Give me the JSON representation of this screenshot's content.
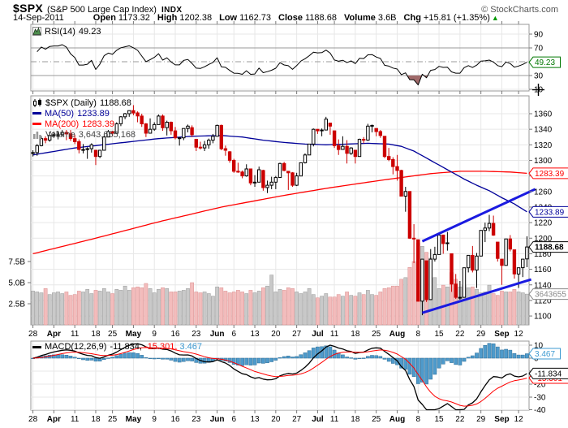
{
  "header": {
    "symbol": "$SPX",
    "symbol_desc": "(S&P 500 Large Cap Index)",
    "exchange": "INDX",
    "credit": "© StockCharts.com",
    "date": "14-Sep-2011",
    "fields": [
      {
        "label": "Open",
        "value": "1173.32"
      },
      {
        "label": "High",
        "value": "1202.38"
      },
      {
        "label": "Low",
        "value": "1162.73"
      },
      {
        "label": "Close",
        "value": "1188.68"
      },
      {
        "label": "Volume",
        "value": "3.6B"
      },
      {
        "label": "Chg",
        "value": "+15.81 (+1.35%)"
      }
    ],
    "change_direction": "up",
    "up_color": "#009900"
  },
  "rsi_panel": {
    "legend_label": "RSI(14)",
    "legend_value": "49.23",
    "axis_ticks": [
      90,
      70,
      30,
      10
    ],
    "levels": {
      "overbought": 70,
      "mid": 50,
      "oversold": 30
    },
    "current_value": 49.23,
    "current_box_color": "#007700"
  },
  "main_panel": {
    "legend": [
      {
        "icon": "candles",
        "label": "$SPX (Daily)",
        "value": "1188.68",
        "color": "#000000"
      },
      {
        "icon": "line",
        "label": "MA(50)",
        "value": "1233.89",
        "color": "#000099"
      },
      {
        "icon": "line",
        "label": "MA(200)",
        "value": "1283.39",
        "color": "#ff0000"
      },
      {
        "icon": "bars",
        "label": "Volume",
        "value": "3,643,655,168",
        "color": "#444444"
      }
    ],
    "price_axis_ticks": [
      1360,
      1340,
      1320,
      1300,
      1280,
      1260,
      1240,
      1220,
      1200,
      1180,
      1160,
      1140,
      1120,
      1100
    ],
    "volume_axis_ticks": [
      "7.5B",
      "5.0B",
      "2.5B"
    ],
    "volume_axis_values": [
      7.5,
      5.0,
      2.5
    ],
    "price_labels": {
      "last": {
        "text": "1188.68",
        "color": "#000000",
        "bold": true
      },
      "ma50": {
        "text": "1233.89",
        "color": "#000099"
      },
      "ma200": {
        "text": "1283.39",
        "color": "#ff0000"
      },
      "volume": {
        "text": "3643655",
        "color": "#888888"
      }
    }
  },
  "macd_panel": {
    "legend_label": "MACD(12,26,9)",
    "legend_values": [
      {
        "text": "-11.834,",
        "color": "#000000"
      },
      {
        "text": "-15.301,",
        "color": "#ff0000"
      },
      {
        "text": "3.467",
        "color": "#3d9ad1"
      }
    ],
    "axis_ticks": [
      10,
      0,
      -10,
      -20,
      -30,
      -40
    ],
    "boxes": [
      {
        "text": "3.467",
        "value": 3.467,
        "color": "#3d9ad1"
      },
      {
        "text": "-15.301",
        "value": -15.301,
        "color": "#ff0000"
      },
      {
        "text": "-11.834",
        "value": -11.834,
        "color": "#000000"
      }
    ]
  },
  "x_axis": {
    "labels": [
      "28",
      "Apr",
      "11",
      "18",
      "25",
      "May",
      "9",
      "16",
      "23",
      "Jun",
      "6",
      "13",
      "20",
      "27",
      "Jul",
      "11",
      "18",
      "25",
      "Aug",
      "8",
      "15",
      "22",
      "29",
      "Sep",
      "12"
    ],
    "tick_days": [
      0,
      5,
      10,
      15,
      19,
      24,
      29,
      34,
      39,
      44,
      48,
      53,
      58,
      63,
      68,
      72,
      77,
      82,
      87,
      92,
      97,
      102,
      107,
      112,
      116
    ]
  },
  "chart_data": {
    "type": "candlestick",
    "title": "$SPX S&P 500 Large Cap Index, Daily, 28-Mar-2011 to 14-Sep-2011",
    "date_range": [
      "2011-03-28",
      "2011-09-14"
    ],
    "price_axis_range": [
      1088,
      1384
    ],
    "volume_axis_range_b": [
      0,
      10
    ],
    "rsi_axis_range": [
      0,
      100
    ],
    "macd_axis_range": [
      -40,
      13
    ],
    "grid": true,
    "indicators": {
      "rsi_period": 14,
      "ma_periods": [
        50,
        200
      ],
      "macd_params": [
        12,
        26,
        9
      ]
    },
    "last_values": {
      "close": 1188.68,
      "ma50": 1233.89,
      "ma200": 1283.39,
      "volume": 3643655168,
      "rsi": 49.23,
      "macd": -11.834,
      "macd_signal": -15.301,
      "macd_hist": 3.467
    },
    "ohlc": [
      [
        1309,
        1313,
        1305,
        1310
      ],
      [
        1310,
        1321,
        1306,
        1319
      ],
      [
        1319,
        1331,
        1318,
        1328
      ],
      [
        1328,
        1331,
        1322,
        1326
      ],
      [
        1326,
        1337,
        1324,
        1332
      ],
      [
        1332,
        1337,
        1329,
        1333
      ],
      [
        1333,
        1338,
        1327,
        1333
      ],
      [
        1333,
        1339,
        1331,
        1336
      ],
      [
        1336,
        1339,
        1326,
        1334
      ],
      [
        1334,
        1339,
        1325,
        1328
      ],
      [
        1328,
        1333,
        1321,
        1324
      ],
      [
        1324,
        1327,
        1309,
        1314
      ],
      [
        1314,
        1321,
        1309,
        1314
      ],
      [
        1314,
        1317,
        1302,
        1315
      ],
      [
        1315,
        1322,
        1310,
        1320
      ],
      [
        1313,
        1313,
        1294,
        1305
      ],
      [
        1305,
        1313,
        1303,
        1313
      ],
      [
        1313,
        1332,
        1313,
        1330
      ],
      [
        1330,
        1339,
        1330,
        1337
      ],
      [
        1337,
        1338,
        1331,
        1335
      ],
      [
        1335,
        1349,
        1334,
        1347
      ],
      [
        1347,
        1357,
        1344,
        1356
      ],
      [
        1356,
        1361,
        1353,
        1360
      ],
      [
        1360,
        1364,
        1356,
        1364
      ],
      [
        1364,
        1371,
        1358,
        1361
      ],
      [
        1361,
        1363,
        1349,
        1357
      ],
      [
        1357,
        1360,
        1343,
        1347
      ],
      [
        1347,
        1348,
        1330,
        1335
      ],
      [
        1335,
        1354,
        1335,
        1340
      ],
      [
        1340,
        1349,
        1338,
        1346
      ],
      [
        1346,
        1359,
        1346,
        1357
      ],
      [
        1357,
        1359,
        1338,
        1342
      ],
      [
        1342,
        1351,
        1332,
        1349
      ],
      [
        1349,
        1350,
        1333,
        1338
      ],
      [
        1338,
        1343,
        1327,
        1329
      ],
      [
        1329,
        1330,
        1319,
        1329
      ],
      [
        1329,
        1341,
        1326,
        1341
      ],
      [
        1341,
        1346,
        1336,
        1344
      ],
      [
        1342,
        1345,
        1330,
        1333
      ],
      [
        1327,
        1327,
        1312,
        1317
      ],
      [
        1317,
        1324,
        1314,
        1316
      ],
      [
        1316,
        1325,
        1312,
        1320
      ],
      [
        1320,
        1328,
        1315,
        1326
      ],
      [
        1326,
        1334,
        1322,
        1331
      ],
      [
        1331,
        1346,
        1331,
        1345
      ],
      [
        1345,
        1346,
        1313,
        1315
      ],
      [
        1315,
        1319,
        1306,
        1313
      ],
      [
        1311,
        1312,
        1297,
        1300
      ],
      [
        1300,
        1302,
        1284,
        1286
      ],
      [
        1286,
        1297,
        1284,
        1285
      ],
      [
        1285,
        1287,
        1277,
        1280
      ],
      [
        1280,
        1295,
        1279,
        1289
      ],
      [
        1289,
        1289,
        1268,
        1271
      ],
      [
        1271,
        1281,
        1266,
        1272
      ],
      [
        1272,
        1292,
        1272,
        1288
      ],
      [
        1287,
        1288,
        1261,
        1265
      ],
      [
        1265,
        1274,
        1258,
        1268
      ],
      [
        1268,
        1279,
        1263,
        1272
      ],
      [
        1272,
        1280,
        1263,
        1278
      ],
      [
        1278,
        1297,
        1278,
        1296
      ],
      [
        1296,
        1298,
        1286,
        1287
      ],
      [
        1286,
        1286,
        1262,
        1284
      ],
      [
        1284,
        1285,
        1266,
        1268
      ],
      [
        1268,
        1284,
        1267,
        1280
      ],
      [
        1280,
        1297,
        1280,
        1297
      ],
      [
        1297,
        1309,
        1296,
        1307
      ],
      [
        1307,
        1321,
        1307,
        1321
      ],
      [
        1321,
        1341,
        1318,
        1340
      ],
      [
        1340,
        1340,
        1334,
        1338
      ],
      [
        1338,
        1341,
        1331,
        1339
      ],
      [
        1339,
        1356,
        1339,
        1353
      ],
      [
        1348,
        1348,
        1333,
        1344
      ],
      [
        1338,
        1338,
        1316,
        1319
      ],
      [
        1319,
        1327,
        1307,
        1314
      ],
      [
        1314,
        1331,
        1314,
        1318
      ],
      [
        1318,
        1326,
        1296,
        1309
      ],
      [
        1309,
        1317,
        1307,
        1316
      ],
      [
        1313,
        1313,
        1296,
        1305
      ],
      [
        1305,
        1328,
        1305,
        1327
      ],
      [
        1327,
        1330,
        1322,
        1326
      ],
      [
        1326,
        1347,
        1325,
        1344
      ],
      [
        1344,
        1346,
        1336,
        1345
      ],
      [
        1341,
        1341,
        1331,
        1337
      ],
      [
        1337,
        1339,
        1329,
        1332
      ],
      [
        1331,
        1331,
        1303,
        1305
      ],
      [
        1305,
        1316,
        1299,
        1301
      ],
      [
        1301,
        1304,
        1282,
        1292
      ],
      [
        1292,
        1307,
        1274,
        1287
      ],
      [
        1287,
        1288,
        1254,
        1254
      ],
      [
        1254,
        1266,
        1234,
        1260
      ],
      [
        1260,
        1260,
        1199,
        1200
      ],
      [
        1200,
        1218,
        1168,
        1199
      ],
      [
        1198,
        1198,
        1119,
        1119
      ],
      [
        1119,
        1173,
        1101,
        1173
      ],
      [
        1171,
        1171,
        1118,
        1121
      ],
      [
        1121,
        1186,
        1121,
        1173
      ],
      [
        1173,
        1189,
        1170,
        1179
      ],
      [
        1179,
        1205,
        1179,
        1204
      ],
      [
        1204,
        1204,
        1180,
        1193
      ],
      [
        1193,
        1208,
        1184,
        1194
      ],
      [
        1180,
        1180,
        1131,
        1141
      ],
      [
        1141,
        1154,
        1122,
        1124
      ],
      [
        1124,
        1145,
        1121,
        1124
      ],
      [
        1124,
        1162,
        1124,
        1162
      ],
      [
        1162,
        1178,
        1156,
        1178
      ],
      [
        1178,
        1190,
        1156,
        1159
      ],
      [
        1159,
        1181,
        1136,
        1177
      ],
      [
        1177,
        1210,
        1177,
        1210
      ],
      [
        1210,
        1220,
        1195,
        1213
      ],
      [
        1213,
        1230,
        1209,
        1219
      ],
      [
        1219,
        1229,
        1203,
        1204
      ],
      [
        1195,
        1195,
        1170,
        1174
      ],
      [
        1173,
        1173,
        1140,
        1165
      ],
      [
        1165,
        1198,
        1165,
        1199
      ],
      [
        1199,
        1204,
        1183,
        1186
      ],
      [
        1185,
        1185,
        1148,
        1154
      ],
      [
        1154,
        1162,
        1136,
        1162
      ],
      [
        1162,
        1172,
        1150,
        1173
      ],
      [
        1173.32,
        1202.38,
        1162.73,
        1188.68
      ]
    ],
    "volume_b": [
      4.0,
      3.9,
      3.8,
      4.3,
      3.6,
      3.8,
      3.9,
      3.7,
      3.9,
      3.5,
      3.6,
      4.0,
      3.9,
      4.2,
      3.7,
      4.1,
      4.0,
      4.3,
      3.9,
      3.7,
      4.2,
      4.1,
      4.6,
      4.1,
      4.4,
      4.5,
      4.4,
      4.9,
      4.3,
      3.8,
      4.2,
      4.4,
      4.3,
      3.9,
      3.9,
      4.0,
      4.1,
      4.3,
      5.0,
      3.9,
      3.8,
      3.9,
      3.7,
      3.4,
      4.5,
      4.4,
      4.0,
      3.8,
      3.9,
      4.1,
      3.9,
      3.7,
      4.1,
      3.8,
      4.0,
      4.4,
      4.6,
      5.9,
      3.9,
      4.2,
      4.1,
      4.4,
      4.3,
      3.9,
      3.7,
      3.9,
      4.3,
      3.6,
      3.2,
      3.4,
      3.7,
      3.3,
      3.3,
      3.6,
      3.4,
      3.9,
      3.5,
      3.4,
      3.8,
      3.6,
      4.1,
      3.6,
      3.5,
      3.9,
      4.3,
      4.4,
      4.6,
      4.6,
      5.4,
      5.6,
      6.8,
      7.5,
      9.7,
      9.3,
      8.6,
      7.9,
      5.6,
      4.3,
      4.7,
      4.5,
      6.2,
      5.4,
      4.5,
      4.7,
      4.4,
      4.5,
      4.2,
      3.8,
      3.9,
      4.7,
      3.7,
      3.5,
      4.0,
      3.9,
      3.9,
      4.2,
      3.9,
      3.8,
      3.64
    ],
    "ma50_keypoints": [
      [
        0,
        1307
      ],
      [
        10,
        1316
      ],
      [
        20,
        1322
      ],
      [
        30,
        1328
      ],
      [
        38,
        1331
      ],
      [
        45,
        1332
      ],
      [
        50,
        1330
      ],
      [
        55,
        1326
      ],
      [
        60,
        1323
      ],
      [
        65,
        1321
      ],
      [
        70,
        1320
      ],
      [
        75,
        1321
      ],
      [
        80,
        1322
      ],
      [
        85,
        1321
      ],
      [
        88,
        1318
      ],
      [
        91,
        1312
      ],
      [
        94,
        1303
      ],
      [
        97,
        1294
      ],
      [
        100,
        1285
      ],
      [
        103,
        1276
      ],
      [
        106,
        1268
      ],
      [
        109,
        1261
      ],
      [
        112,
        1252
      ],
      [
        115,
        1244
      ],
      [
        118,
        1233.89
      ]
    ],
    "ma200_keypoints": [
      [
        0,
        1180
      ],
      [
        15,
        1200
      ],
      [
        30,
        1221
      ],
      [
        45,
        1240
      ],
      [
        60,
        1255
      ],
      [
        70,
        1264
      ],
      [
        80,
        1272
      ],
      [
        88,
        1278
      ],
      [
        95,
        1283
      ],
      [
        102,
        1286
      ],
      [
        108,
        1286
      ],
      [
        114,
        1285
      ],
      [
        118,
        1283.39
      ]
    ],
    "trendlines": [
      {
        "name": "lower-channel-line",
        "from_day": 93,
        "from_price": 1104,
        "to_day": 119,
        "to_price": 1147
      },
      {
        "name": "upper-channel-line",
        "from_day": 93,
        "from_price": 1196,
        "to_day": 120,
        "to_price": 1263
      }
    ],
    "colors": {
      "candle_up": "#000000",
      "candle_down": "#cc0000",
      "volume_up": "#c9c9c9",
      "volume_up_border": "#9a9a9a",
      "volume_down": "#f3bcbc",
      "volume_down_border": "#d99090",
      "ma50": "#000099",
      "ma200": "#ff0000",
      "trendline": "#1a1ae0",
      "rsi_line": "#000000",
      "rsi_fill": "#a06a6a",
      "rsi_level": "#999999",
      "macd_hist": "#4e9acb",
      "macd_hist_border": "#2f6e97",
      "macd_line": "#000000",
      "macd_signal": "#ff0000",
      "grid": "#e7e7e7",
      "panel_border": "#999999",
      "tick": "#777777"
    }
  }
}
